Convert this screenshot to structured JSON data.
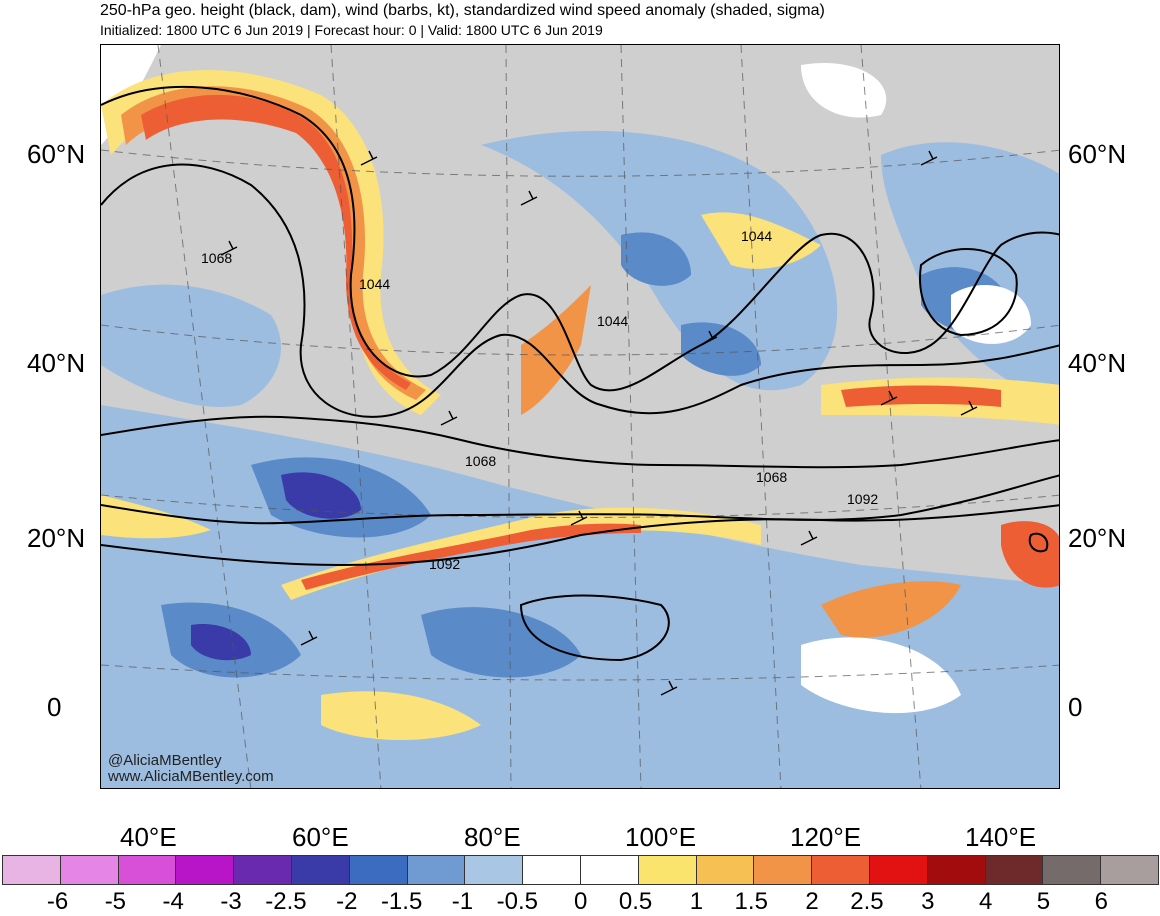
{
  "header": {
    "title": "250-hPa geo. height (black, dam), wind (barbs, kt), standardized wind speed anomaly (shaded, sigma)",
    "subtitle": "Initialized: 1800 UTC 6 Jun 2019 | Forecast hour: 0 | Valid: 1800 UTC 6 Jun 2019"
  },
  "map": {
    "lat_labels": [
      "60°N",
      "40°N",
      "20°N",
      "0"
    ],
    "lon_labels": [
      "40°E",
      "60°E",
      "80°E",
      "100°E",
      "120°E",
      "140°E"
    ],
    "contour_labels": [
      "1068",
      "1044",
      "1044",
      "1044",
      "1068",
      "1068",
      "1092",
      "1092"
    ],
    "credit_lines": [
      "@AliciaMBentley",
      "www.AliciaMBentley.com"
    ],
    "colors": {
      "contour": "#000000",
      "jet_core": "#f06030",
      "jet_edge": "#fbe27a",
      "negative_anomaly": "#5b8ac9",
      "neutral": "#cccccc"
    }
  },
  "colorbar": {
    "labels": [
      "-6",
      "-5",
      "-4",
      "-3",
      "-2.5",
      "-2",
      "-1.5",
      "-1",
      "-0.5",
      "0",
      "0.5",
      "1",
      "1.5",
      "2",
      "2.5",
      "3",
      "4",
      "5",
      "6"
    ],
    "colors": [
      "#e8b4e4",
      "#e585e5",
      "#d850d8",
      "#b814c8",
      "#6a2ab0",
      "#3a3aa8",
      "#3b6cc0",
      "#6f9ad2",
      "#a9c7e4",
      "#ffffff",
      "#ffffff",
      "#fbe46d",
      "#f7c053",
      "#f29447",
      "#ee5e35",
      "#e21212",
      "#a30c0c",
      "#6e2a2a",
      "#756b6b",
      "#a89e9e"
    ]
  }
}
